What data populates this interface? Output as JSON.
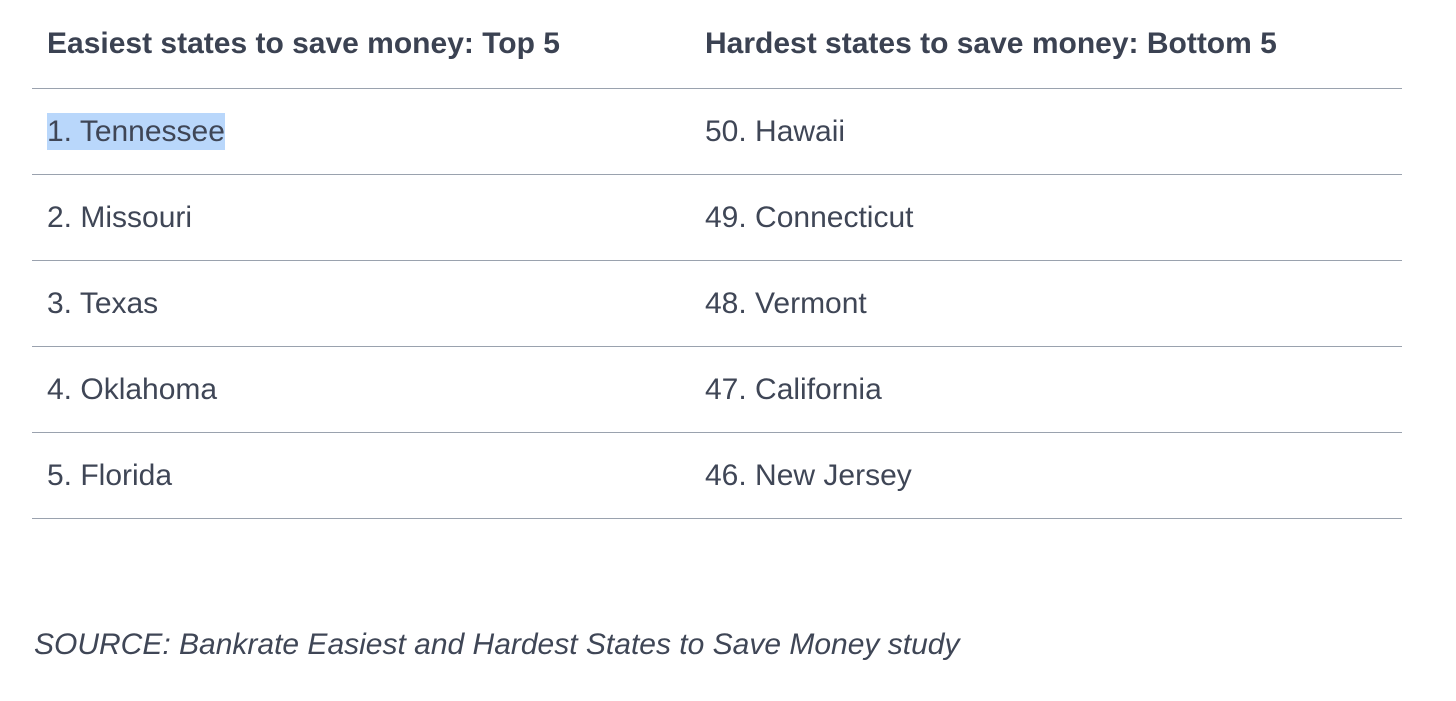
{
  "table": {
    "headers": [
      "Easiest states to save money: Top 5",
      "Hardest states to save money: Bottom 5"
    ],
    "rows": [
      [
        "1. Tennessee",
        "50. Hawaii"
      ],
      [
        "2. Missouri",
        "49. Connecticut"
      ],
      [
        "3. Texas",
        "48. Vermont"
      ],
      [
        "4. Oklahoma",
        "47. California"
      ],
      [
        "5. Florida",
        "46. New Jersey"
      ]
    ],
    "selected_text": "1. Tennessee",
    "selection_color": "#b9d7fb"
  },
  "source": "SOURCE: Bankrate Easiest and Hardest States to Save Money study"
}
